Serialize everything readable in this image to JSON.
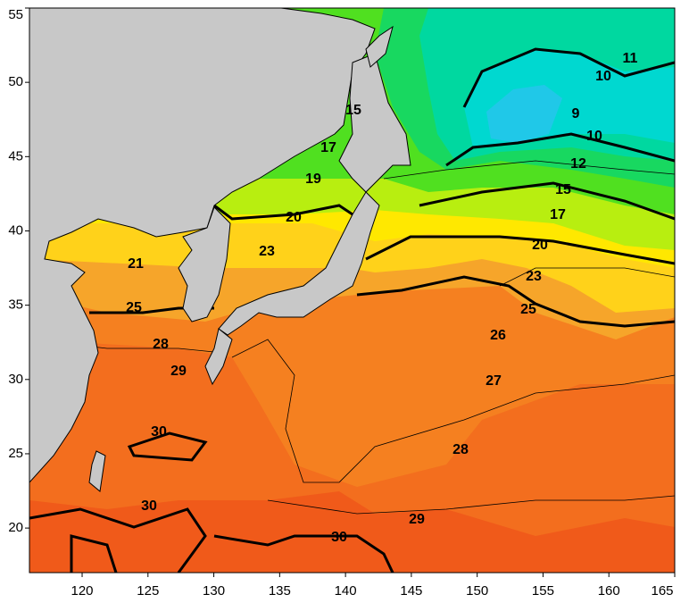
{
  "map": {
    "xlim": [
      116,
      165
    ],
    "ylim": [
      17,
      55
    ],
    "x_ticks": [
      120,
      125,
      130,
      135,
      140,
      145,
      150,
      155,
      160,
      165
    ],
    "y_ticks": [
      20,
      25,
      30,
      35,
      40,
      45,
      50,
      55
    ],
    "contour_labels": [
      11,
      10,
      15,
      9,
      10,
      17,
      12,
      19,
      15,
      17,
      20,
      20,
      23,
      23,
      21,
      25,
      25,
      26,
      28,
      29,
      27,
      30,
      28,
      30,
      29,
      30
    ]
  }
}
